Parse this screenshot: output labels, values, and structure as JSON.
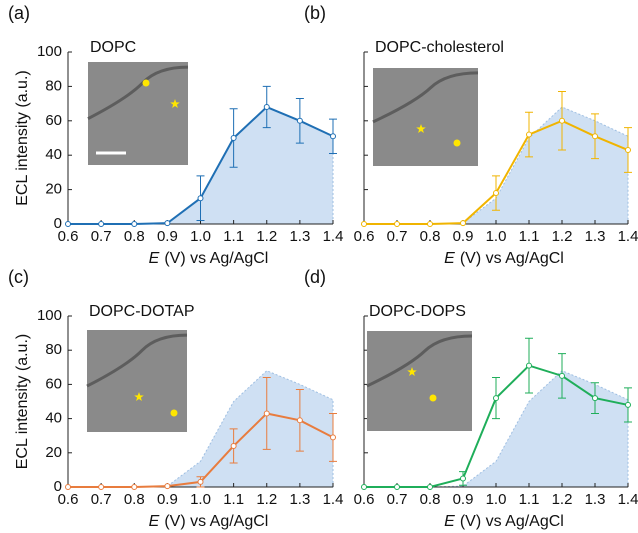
{
  "chart_data": [
    {
      "type": "line",
      "letter": "(a)",
      "label": "DOPC",
      "ylabel": "ECL intensity (a.u.)",
      "xlabel_symbol": "E",
      "xlabel": "(V) vs Ag/AgCl",
      "x": [
        0.6,
        0.7,
        0.8,
        0.9,
        1.0,
        1.1,
        1.2,
        1.3,
        1.4
      ],
      "series": [
        {
          "color": "#1f6fb4",
          "values": [
            0,
            0,
            0,
            0.5,
            15,
            50,
            68,
            60,
            51
          ],
          "errors": [
            null,
            null,
            null,
            null,
            13,
            17,
            12,
            13,
            10
          ]
        }
      ],
      "area": {
        "color": "#cfe0f3",
        "values": [
          0,
          0,
          0,
          0.5,
          15,
          50,
          68,
          60,
          51
        ]
      },
      "xlim": [
        0.6,
        1.4
      ],
      "ylim": [
        0,
        100
      ],
      "xticks": [
        0.6,
        0.7,
        0.8,
        0.9,
        {
          "value": 1,
          "label": "1.0"
        },
        1.1,
        1.2,
        1.3,
        1.4
      ],
      "yticks": [
        0,
        20,
        40,
        60,
        80,
        100
      ],
      "show_ytick_labels": true
    },
    {
      "type": "line",
      "letter": "(b)",
      "label": "DOPC-cholesterol",
      "xlabel_symbol": "E",
      "xlabel": "(V) vs Ag/AgCl",
      "x": [
        0.6,
        0.7,
        0.8,
        0.9,
        1.0,
        1.1,
        1.2,
        1.3,
        1.4
      ],
      "series": [
        {
          "color": "#f0b400",
          "values": [
            0,
            0,
            0,
            0.5,
            18,
            52,
            60,
            51,
            43
          ],
          "errors": [
            null,
            null,
            null,
            null,
            10,
            13,
            17,
            13,
            13
          ]
        }
      ],
      "area": {
        "color": "#cfe0f3",
        "values": [
          0,
          0,
          0,
          0.5,
          15,
          50,
          68,
          60,
          51
        ]
      },
      "xlim": [
        0.6,
        1.4
      ],
      "ylim": [
        0,
        100
      ],
      "xticks": [
        0.6,
        0.7,
        0.8,
        0.9,
        {
          "value": 1,
          "label": "1.0"
        },
        1.1,
        1.2,
        1.3,
        1.4
      ],
      "yticks": [
        0,
        20,
        40,
        60,
        80,
        100
      ],
      "show_ytick_labels": false
    },
    {
      "type": "line",
      "letter": "(c)",
      "label": "DOPC-DOTAP",
      "ylabel": "ECL intensity (a.u.)",
      "xlabel_symbol": "E",
      "xlabel": "(V) vs Ag/AgCl",
      "x": [
        0.6,
        0.7,
        0.8,
        0.9,
        1.0,
        1.1,
        1.2,
        1.3,
        1.4
      ],
      "series": [
        {
          "color": "#e87c3e",
          "values": [
            0,
            0,
            0,
            0.5,
            3,
            24,
            43,
            39,
            29
          ],
          "errors": [
            null,
            null,
            null,
            null,
            3,
            10,
            21,
            18,
            14
          ]
        }
      ],
      "area": {
        "color": "#cfe0f3",
        "values": [
          0,
          0,
          0,
          0.5,
          15,
          50,
          68,
          60,
          51
        ]
      },
      "xlim": [
        0.6,
        1.4
      ],
      "ylim": [
        0,
        100
      ],
      "xticks": [
        0.6,
        0.7,
        0.8,
        0.9,
        {
          "value": 1,
          "label": "1.0"
        },
        1.1,
        1.2,
        1.3,
        1.4
      ],
      "yticks": [
        0,
        20,
        40,
        60,
        80,
        100
      ],
      "show_ytick_labels": true
    },
    {
      "type": "line",
      "letter": "(d)",
      "label": "DOPC-DOPS",
      "xlabel_symbol": "E",
      "xlabel": "(V) vs Ag/AgCl",
      "x": [
        0.6,
        0.7,
        0.8,
        0.9,
        1.0,
        1.1,
        1.2,
        1.3,
        1.4
      ],
      "series": [
        {
          "color": "#1fae5a",
          "values": [
            0,
            0,
            0,
            5,
            52,
            71,
            65,
            52,
            48
          ],
          "errors": [
            null,
            null,
            null,
            4,
            12,
            16,
            13,
            9,
            10
          ]
        }
      ],
      "area": {
        "color": "#cfe0f3",
        "values": [
          0,
          0,
          0,
          0.5,
          15,
          50,
          68,
          60,
          51
        ]
      },
      "xlim": [
        0.6,
        1.4
      ],
      "ylim": [
        0,
        100
      ],
      "xticks": [
        0.6,
        0.7,
        0.8,
        0.9,
        {
          "value": 1,
          "label": "1.0"
        },
        1.1,
        1.2,
        1.3,
        1.4
      ],
      "yticks": [
        0,
        20,
        40,
        60,
        80,
        100
      ],
      "show_ytick_labels": false
    }
  ]
}
